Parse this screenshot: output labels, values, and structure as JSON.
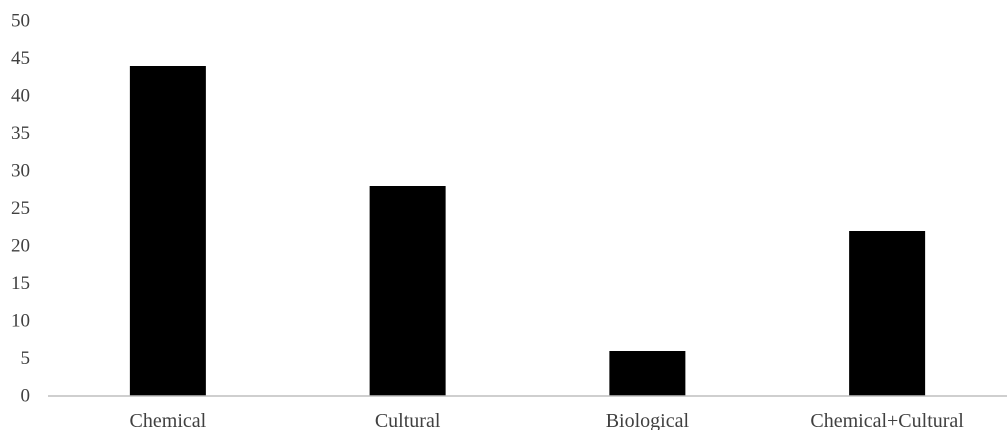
{
  "chart_data": {
    "type": "bar",
    "title": "",
    "xlabel": "",
    "ylabel": "",
    "categories": [
      "Chemical",
      "Cultural",
      "Biological",
      "Chemical+Cultural"
    ],
    "values": [
      44,
      28,
      6,
      22
    ],
    "ylim": [
      0,
      50
    ],
    "yticks": [
      "0",
      "5",
      "10",
      "15",
      "20",
      "25",
      "30",
      "35",
      "40",
      "45",
      "50"
    ],
    "grid": false,
    "legend": "none",
    "colors": {
      "bar": "#000000",
      "axis": "#bfbfbf",
      "text": "#404040"
    }
  }
}
